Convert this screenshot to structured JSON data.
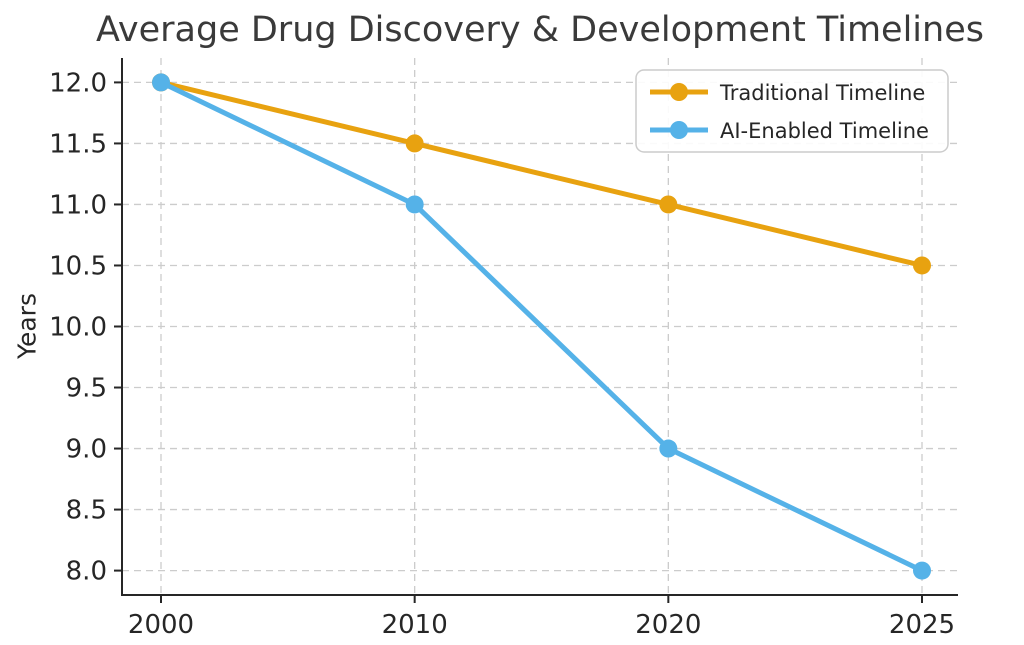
{
  "chart_data": {
    "type": "line",
    "title": "Average Drug Discovery & Development Timelines",
    "xlabel": "",
    "ylabel": "Years",
    "categories": [
      "2000",
      "2010",
      "2020",
      "2025"
    ],
    "series": [
      {
        "id": "traditional-timeline",
        "name": "Traditional Timeline",
        "color": "#E8A210",
        "values": [
          12.0,
          11.5,
          11.0,
          10.5
        ]
      },
      {
        "id": "ai-enabled-timeline",
        "name": "AI-Enabled Timeline",
        "color": "#55B2E8",
        "values": [
          12.0,
          11.0,
          9.0,
          8.0
        ]
      }
    ],
    "ylim": [
      7.8,
      12.2
    ],
    "yticks": [
      8.0,
      8.5,
      9.0,
      9.5,
      10.0,
      10.5,
      11.0,
      11.5,
      12.0
    ],
    "ytick_format_decimals": 1,
    "legend_position": "upper right",
    "grid": "dashed",
    "grid_color": "#cccccc",
    "axis_color": "#262626",
    "tick_color": "#262626",
    "background_color": "#ffffff",
    "legend_border_color": "#cccccc"
  }
}
